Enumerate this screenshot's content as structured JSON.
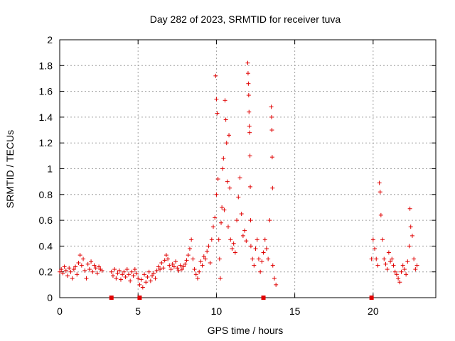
{
  "chart_data": {
    "type": "scatter",
    "title": "Day 282 of 2023, SRMTID for receiver tuva",
    "xlabel": "GPS time / hours",
    "ylabel": "SRMTID / TECUs",
    "xlim": [
      0,
      24
    ],
    "ylim": [
      0,
      2
    ],
    "xticks": [
      0,
      5,
      10,
      15,
      20
    ],
    "xtick_labels": [
      "0",
      "5",
      "10",
      "15",
      "20"
    ],
    "yticks": [
      0,
      0.2,
      0.4,
      0.6,
      0.8,
      1,
      1.2,
      1.4,
      1.6,
      1.8,
      2
    ],
    "ytick_labels": [
      "0",
      "0.2",
      "0.4",
      "0.6",
      "0.8",
      "1",
      "1.2",
      "1.4",
      "1.6",
      "1.8",
      "2"
    ],
    "grid": true,
    "marker": "+",
    "marker_color": "#e00000",
    "zero_markers_x": [
      3.3,
      5.1,
      13.0,
      19.9
    ],
    "series": [
      {
        "name": "SRMTID",
        "points": [
          [
            0.0,
            0.2
          ],
          [
            0.1,
            0.22
          ],
          [
            0.2,
            0.19
          ],
          [
            0.3,
            0.24
          ],
          [
            0.4,
            0.21
          ],
          [
            0.5,
            0.17
          ],
          [
            0.6,
            0.23
          ],
          [
            0.7,
            0.2
          ],
          [
            0.8,
            0.15
          ],
          [
            0.9,
            0.22
          ],
          [
            1.0,
            0.24
          ],
          [
            1.1,
            0.18
          ],
          [
            1.2,
            0.27
          ],
          [
            1.3,
            0.33
          ],
          [
            1.4,
            0.25
          ],
          [
            1.5,
            0.3
          ],
          [
            1.6,
            0.21
          ],
          [
            1.7,
            0.15
          ],
          [
            1.8,
            0.26
          ],
          [
            1.9,
            0.22
          ],
          [
            2.0,
            0.28
          ],
          [
            2.1,
            0.2
          ],
          [
            2.2,
            0.25
          ],
          [
            2.3,
            0.23
          ],
          [
            2.4,
            0.19
          ],
          [
            2.5,
            0.24
          ],
          [
            2.6,
            0.22
          ],
          [
            2.7,
            0.21
          ],
          [
            3.3,
            0.2
          ],
          [
            3.4,
            0.17
          ],
          [
            3.5,
            0.22
          ],
          [
            3.6,
            0.15
          ],
          [
            3.7,
            0.19
          ],
          [
            3.8,
            0.21
          ],
          [
            3.9,
            0.14
          ],
          [
            4.0,
            0.18
          ],
          [
            4.1,
            0.2
          ],
          [
            4.2,
            0.16
          ],
          [
            4.3,
            0.22
          ],
          [
            4.4,
            0.18
          ],
          [
            4.5,
            0.13
          ],
          [
            4.6,
            0.2
          ],
          [
            4.7,
            0.17
          ],
          [
            4.8,
            0.22
          ],
          [
            4.9,
            0.19
          ],
          [
            5.0,
            0.15
          ],
          [
            5.1,
            0.1
          ],
          [
            5.2,
            0.14
          ],
          [
            5.3,
            0.08
          ],
          [
            5.4,
            0.18
          ],
          [
            5.5,
            0.12
          ],
          [
            5.6,
            0.16
          ],
          [
            5.7,
            0.2
          ],
          [
            5.8,
            0.13
          ],
          [
            5.9,
            0.17
          ],
          [
            6.0,
            0.19
          ],
          [
            6.1,
            0.15
          ],
          [
            6.2,
            0.21
          ],
          [
            6.3,
            0.24
          ],
          [
            6.4,
            0.22
          ],
          [
            6.5,
            0.27
          ],
          [
            6.6,
            0.23
          ],
          [
            6.7,
            0.29
          ],
          [
            6.8,
            0.33
          ],
          [
            6.9,
            0.3
          ],
          [
            7.0,
            0.25
          ],
          [
            7.1,
            0.22
          ],
          [
            7.2,
            0.26
          ],
          [
            7.3,
            0.24
          ],
          [
            7.4,
            0.28
          ],
          [
            7.5,
            0.23
          ],
          [
            7.6,
            0.21
          ],
          [
            7.7,
            0.25
          ],
          [
            7.8,
            0.22
          ],
          [
            7.9,
            0.24
          ],
          [
            8.0,
            0.26
          ],
          [
            8.1,
            0.29
          ],
          [
            8.2,
            0.33
          ],
          [
            8.3,
            0.38
          ],
          [
            8.4,
            0.45
          ],
          [
            8.5,
            0.3
          ],
          [
            8.6,
            0.22
          ],
          [
            8.7,
            0.18
          ],
          [
            8.8,
            0.15
          ],
          [
            8.9,
            0.2
          ],
          [
            9.0,
            0.28
          ],
          [
            9.1,
            0.25
          ],
          [
            9.2,
            0.32
          ],
          [
            9.3,
            0.3
          ],
          [
            9.4,
            0.36
          ],
          [
            9.5,
            0.4
          ],
          [
            9.6,
            0.27
          ],
          [
            9.7,
            0.45
          ],
          [
            9.8,
            0.55
          ],
          [
            9.9,
            0.62
          ],
          [
            10.0,
            0.8
          ],
          [
            9.95,
            1.72
          ],
          [
            10.0,
            1.54
          ],
          [
            10.05,
            1.43
          ],
          [
            10.1,
            0.92
          ],
          [
            10.15,
            0.45
          ],
          [
            10.2,
            0.3
          ],
          [
            10.25,
            0.15
          ],
          [
            10.3,
            0.58
          ],
          [
            10.35,
            0.7
          ],
          [
            10.4,
            1.0
          ],
          [
            10.45,
            1.08
          ],
          [
            10.5,
            0.68
          ],
          [
            10.55,
            1.53
          ],
          [
            10.6,
            1.38
          ],
          [
            10.65,
            1.2
          ],
          [
            10.7,
            0.9
          ],
          [
            10.75,
            0.55
          ],
          [
            10.8,
            1.26
          ],
          [
            10.85,
            0.85
          ],
          [
            10.9,
            0.45
          ],
          [
            11.0,
            0.38
          ],
          [
            11.1,
            0.42
          ],
          [
            11.2,
            0.35
          ],
          [
            11.3,
            0.6
          ],
          [
            11.4,
            0.78
          ],
          [
            11.5,
            0.93
          ],
          [
            11.6,
            0.65
          ],
          [
            11.7,
            0.48
          ],
          [
            11.8,
            0.52
          ],
          [
            11.9,
            0.44
          ],
          [
            12.0,
            1.82
          ],
          [
            12.02,
            1.74
          ],
          [
            12.04,
            1.66
          ],
          [
            12.06,
            1.57
          ],
          [
            12.08,
            1.44
          ],
          [
            12.1,
            1.33
          ],
          [
            12.12,
            1.28
          ],
          [
            12.14,
            1.1
          ],
          [
            12.16,
            0.86
          ],
          [
            12.18,
            0.6
          ],
          [
            12.2,
            0.4
          ],
          [
            12.3,
            0.3
          ],
          [
            12.4,
            0.25
          ],
          [
            12.5,
            0.38
          ],
          [
            12.6,
            0.45
          ],
          [
            12.7,
            0.3
          ],
          [
            12.8,
            0.2
          ],
          [
            12.9,
            0.28
          ],
          [
            13.0,
            0.35
          ],
          [
            13.1,
            0.45
          ],
          [
            13.2,
            0.38
          ],
          [
            13.3,
            0.3
          ],
          [
            13.4,
            0.6
          ],
          [
            13.5,
            1.48
          ],
          [
            13.52,
            1.4
          ],
          [
            13.54,
            1.3
          ],
          [
            13.56,
            1.09
          ],
          [
            13.58,
            0.85
          ],
          [
            13.6,
            0.25
          ],
          [
            13.7,
            0.15
          ],
          [
            13.8,
            0.1
          ],
          [
            19.9,
            0.3
          ],
          [
            20.0,
            0.45
          ],
          [
            20.1,
            0.38
          ],
          [
            20.2,
            0.3
          ],
          [
            20.3,
            0.25
          ],
          [
            20.4,
            0.89
          ],
          [
            20.45,
            0.82
          ],
          [
            20.5,
            0.64
          ],
          [
            20.6,
            0.45
          ],
          [
            20.7,
            0.3
          ],
          [
            20.8,
            0.26
          ],
          [
            20.9,
            0.22
          ],
          [
            21.0,
            0.35
          ],
          [
            21.1,
            0.28
          ],
          [
            21.2,
            0.3
          ],
          [
            21.3,
            0.25
          ],
          [
            21.4,
            0.2
          ],
          [
            21.5,
            0.18
          ],
          [
            21.6,
            0.15
          ],
          [
            21.7,
            0.12
          ],
          [
            21.8,
            0.2
          ],
          [
            21.9,
            0.25
          ],
          [
            22.0,
            0.22
          ],
          [
            22.1,
            0.18
          ],
          [
            22.2,
            0.28
          ],
          [
            22.3,
            0.4
          ],
          [
            22.35,
            0.69
          ],
          [
            22.4,
            0.55
          ],
          [
            22.5,
            0.48
          ],
          [
            22.6,
            0.3
          ],
          [
            22.7,
            0.22
          ],
          [
            22.8,
            0.25
          ]
        ]
      }
    ]
  }
}
